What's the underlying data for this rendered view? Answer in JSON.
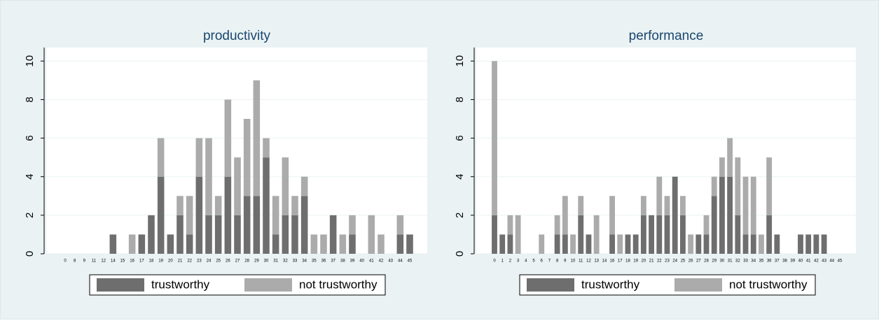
{
  "chart_data": [
    {
      "type": "bar",
      "stacked": true,
      "title": "productivity",
      "categories": [
        "0",
        "8",
        "9",
        "11",
        "12",
        "14",
        "15",
        "16",
        "17",
        "18",
        "19",
        "20",
        "21",
        "22",
        "23",
        "24",
        "25",
        "26",
        "27",
        "28",
        "29",
        "30",
        "31",
        "32",
        "33",
        "34",
        "35",
        "36",
        "37",
        "38",
        "39",
        "40",
        "41",
        "42",
        "43",
        "44",
        "45"
      ],
      "series": [
        {
          "name": "trustworthy",
          "color": "#6e6e6e",
          "values": [
            0,
            0,
            0,
            0,
            0,
            1,
            0,
            0,
            1,
            2,
            4,
            1,
            2,
            1,
            4,
            2,
            2,
            4,
            2,
            3,
            3,
            5,
            1,
            2,
            2,
            3,
            0,
            0,
            2,
            0,
            1,
            0,
            0,
            0,
            0,
            1,
            1
          ]
        },
        {
          "name": "not trustworthy",
          "color": "#ababab",
          "values": [
            0,
            0,
            0,
            0,
            0,
            0,
            0,
            1,
            0,
            0,
            2,
            0,
            1,
            2,
            2,
            4,
            1,
            4,
            3,
            4,
            6,
            1,
            2,
            3,
            1,
            1,
            1,
            1,
            0,
            1,
            1,
            0,
            2,
            1,
            0,
            1,
            0
          ]
        }
      ],
      "ylim": [
        0,
        10.7
      ],
      "yticks": [
        0,
        2,
        4,
        6,
        8,
        10
      ],
      "grid": true
    },
    {
      "type": "bar",
      "stacked": true,
      "title": "performance",
      "categories": [
        "0",
        "1",
        "2",
        "3",
        "4",
        "5",
        "6",
        "7",
        "8",
        "9",
        "10",
        "11",
        "12",
        "13",
        "14",
        "16",
        "17",
        "18",
        "19",
        "20",
        "21",
        "22",
        "23",
        "24",
        "25",
        "26",
        "27",
        "28",
        "29",
        "30",
        "31",
        "32",
        "33",
        "34",
        "35",
        "36",
        "37",
        "38",
        "39",
        "40",
        "41",
        "42",
        "43",
        "44",
        "45"
      ],
      "series": [
        {
          "name": "trustworthy",
          "color": "#6e6e6e",
          "values": [
            2,
            1,
            1,
            0,
            0,
            0,
            0,
            0,
            1,
            1,
            0,
            2,
            1,
            0,
            0,
            1,
            0,
            1,
            1,
            2,
            2,
            2,
            2,
            4,
            2,
            0,
            1,
            1,
            3,
            4,
            4,
            2,
            1,
            1,
            0,
            2,
            1,
            0,
            0,
            1,
            1,
            1,
            1,
            0,
            0
          ]
        },
        {
          "name": "not trustworthy",
          "color": "#ababab",
          "values": [
            8,
            0,
            1,
            2,
            0,
            0,
            1,
            0,
            1,
            2,
            1,
            1,
            0,
            2,
            0,
            2,
            1,
            0,
            0,
            1,
            0,
            2,
            1,
            0,
            1,
            1,
            0,
            1,
            1,
            1,
            2,
            3,
            3,
            3,
            1,
            3,
            0,
            0,
            0,
            0,
            0,
            0,
            0,
            0,
            0
          ]
        }
      ],
      "ylim": [
        0,
        10.7
      ],
      "yticks": [
        0,
        2,
        4,
        6,
        8,
        10
      ],
      "grid": true
    }
  ]
}
